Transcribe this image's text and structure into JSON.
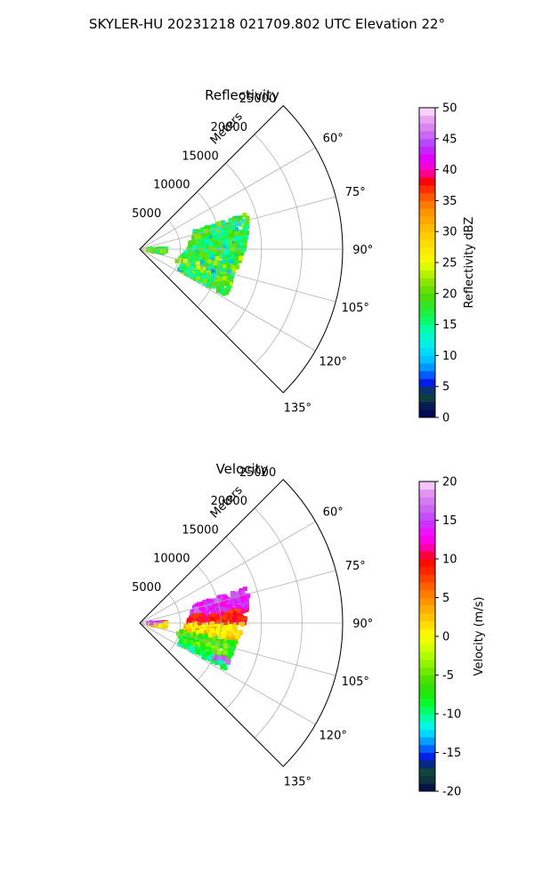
{
  "figure": {
    "title": "SKYLER-HU  20231218  021709.802 UTC Elevation 22°"
  },
  "chart_data": [
    {
      "type": "heatmap",
      "subtype": "radar-ppi-sector",
      "title": "Reflectivity",
      "range_axis_label": "Meters",
      "range_ticks": [
        5000,
        10000,
        15000,
        20000,
        25000
      ],
      "range_max": 25000,
      "azimuth_range_deg": [
        45,
        135
      ],
      "azimuth_ticks_deg": [
        60,
        75,
        90,
        105,
        120,
        135
      ],
      "azimuth_tick_labels": [
        "60°",
        "75°",
        "90°",
        "105°",
        "120°",
        "135°"
      ],
      "grid": true,
      "colorbar": {
        "label": "Reflectivity dBZ",
        "min": 0,
        "max": 50,
        "ticks": [
          0,
          5,
          10,
          15,
          20,
          25,
          30,
          35,
          40,
          45,
          50
        ],
        "stops": [
          [
            0,
            "#000050"
          ],
          [
            2,
            "#0a1e5a"
          ],
          [
            3,
            "#0b3d3d"
          ],
          [
            4,
            "#124f3a"
          ],
          [
            5,
            "#0000c8"
          ],
          [
            6,
            "#0030ff"
          ],
          [
            7,
            "#0060ff"
          ],
          [
            8,
            "#0090ff"
          ],
          [
            9,
            "#00b4ff"
          ],
          [
            10,
            "#00d2ff"
          ],
          [
            12,
            "#00f0e6"
          ],
          [
            14,
            "#00ffb4"
          ],
          [
            15,
            "#00ff80"
          ],
          [
            17,
            "#20f040"
          ],
          [
            19,
            "#40dc10"
          ],
          [
            21,
            "#70e000"
          ],
          [
            23,
            "#b0f000"
          ],
          [
            25,
            "#f0ff00"
          ],
          [
            27,
            "#ffe600"
          ],
          [
            29,
            "#ffd200"
          ],
          [
            31,
            "#ffb400"
          ],
          [
            33,
            "#ff9600"
          ],
          [
            35,
            "#ff6a00"
          ],
          [
            37,
            "#ff2a00"
          ],
          [
            38,
            "#ff0000"
          ],
          [
            39,
            "#ff0060"
          ],
          [
            40,
            "#ff00c8"
          ],
          [
            42,
            "#e000ff"
          ],
          [
            44,
            "#b040ff"
          ],
          [
            46,
            "#d070f0"
          ],
          [
            48,
            "#e8a0f0"
          ],
          [
            50,
            "#ffe8ff"
          ]
        ]
      }
    },
    {
      "type": "heatmap",
      "subtype": "radar-ppi-sector",
      "title": "Velocity",
      "range_axis_label": "Meters",
      "range_ticks": [
        5000,
        10000,
        15000,
        20000,
        25000
      ],
      "range_max": 25000,
      "azimuth_range_deg": [
        45,
        135
      ],
      "azimuth_ticks_deg": [
        60,
        75,
        90,
        105,
        120,
        135
      ],
      "azimuth_tick_labels": [
        "60°",
        "75°",
        "90°",
        "105°",
        "120°",
        "135°"
      ],
      "grid": true,
      "colorbar": {
        "label": "Velocity (m/s)",
        "min": -20,
        "max": 20,
        "ticks": [
          -20,
          -15,
          -10,
          -5,
          0,
          5,
          10,
          15,
          20
        ],
        "stops": [
          [
            -20,
            "#000050"
          ],
          [
            -19,
            "#0b2a40"
          ],
          [
            -18,
            "#0b3d3d"
          ],
          [
            -17,
            "#124f3a"
          ],
          [
            -16,
            "#0000c8"
          ],
          [
            -15,
            "#0040ff"
          ],
          [
            -14,
            "#0080ff"
          ],
          [
            -13,
            "#00c0ff"
          ],
          [
            -12,
            "#00f0ff"
          ],
          [
            -11,
            "#00ffc8"
          ],
          [
            -10,
            "#00ff80"
          ],
          [
            -9,
            "#00ff40"
          ],
          [
            -8,
            "#10f010"
          ],
          [
            -6,
            "#40dc00"
          ],
          [
            -4,
            "#80f000"
          ],
          [
            -2,
            "#c0ff00"
          ],
          [
            0,
            "#ffff00"
          ],
          [
            2,
            "#ffd200"
          ],
          [
            4,
            "#ffa000"
          ],
          [
            6,
            "#ff7000"
          ],
          [
            8,
            "#ff3000"
          ],
          [
            10,
            "#ff0000"
          ],
          [
            11,
            "#ff0080"
          ],
          [
            12,
            "#ff00d0"
          ],
          [
            13,
            "#ff00ff"
          ],
          [
            15,
            "#c040ff"
          ],
          [
            17,
            "#d070f0"
          ],
          [
            19,
            "#e8a0f0"
          ],
          [
            20,
            "#ffe8ff"
          ]
        ]
      }
    }
  ]
}
